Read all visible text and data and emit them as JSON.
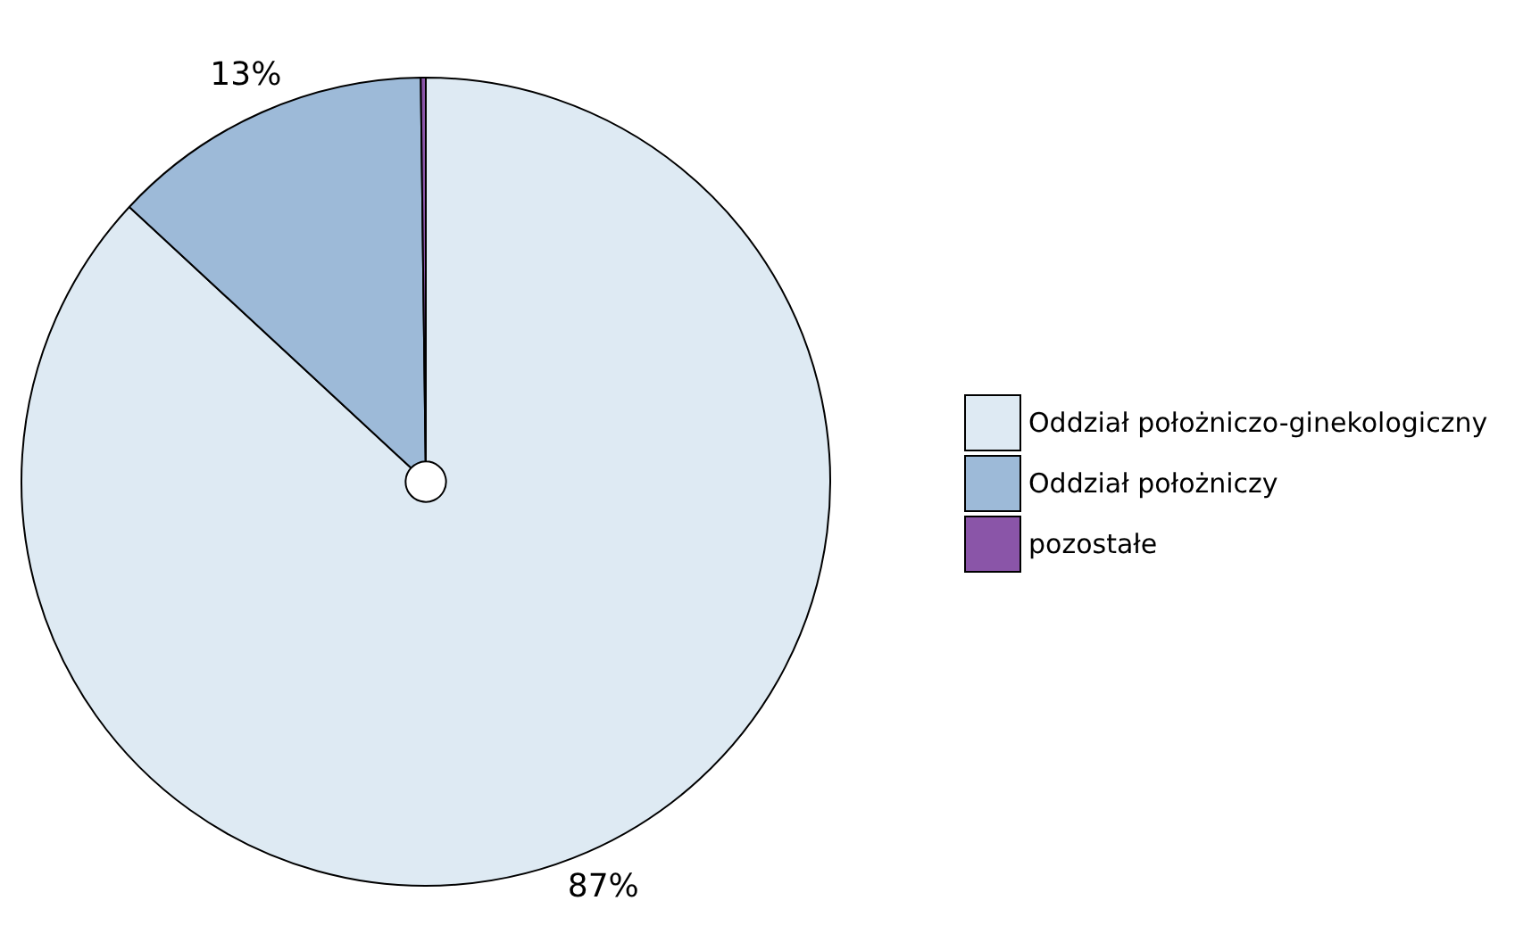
{
  "chart_data": {
    "type": "pie",
    "categories": [
      "Oddział położniczo-ginekologiczny",
      "Oddział położniczy",
      "pozostałe"
    ],
    "values": [
      86.9,
      12.9,
      0.2
    ],
    "colors": [
      "#deeaf3",
      "#9dbad8",
      "#8a55a8"
    ],
    "value_labels": [
      "87%",
      "13%",
      null
    ],
    "legend": "right"
  }
}
